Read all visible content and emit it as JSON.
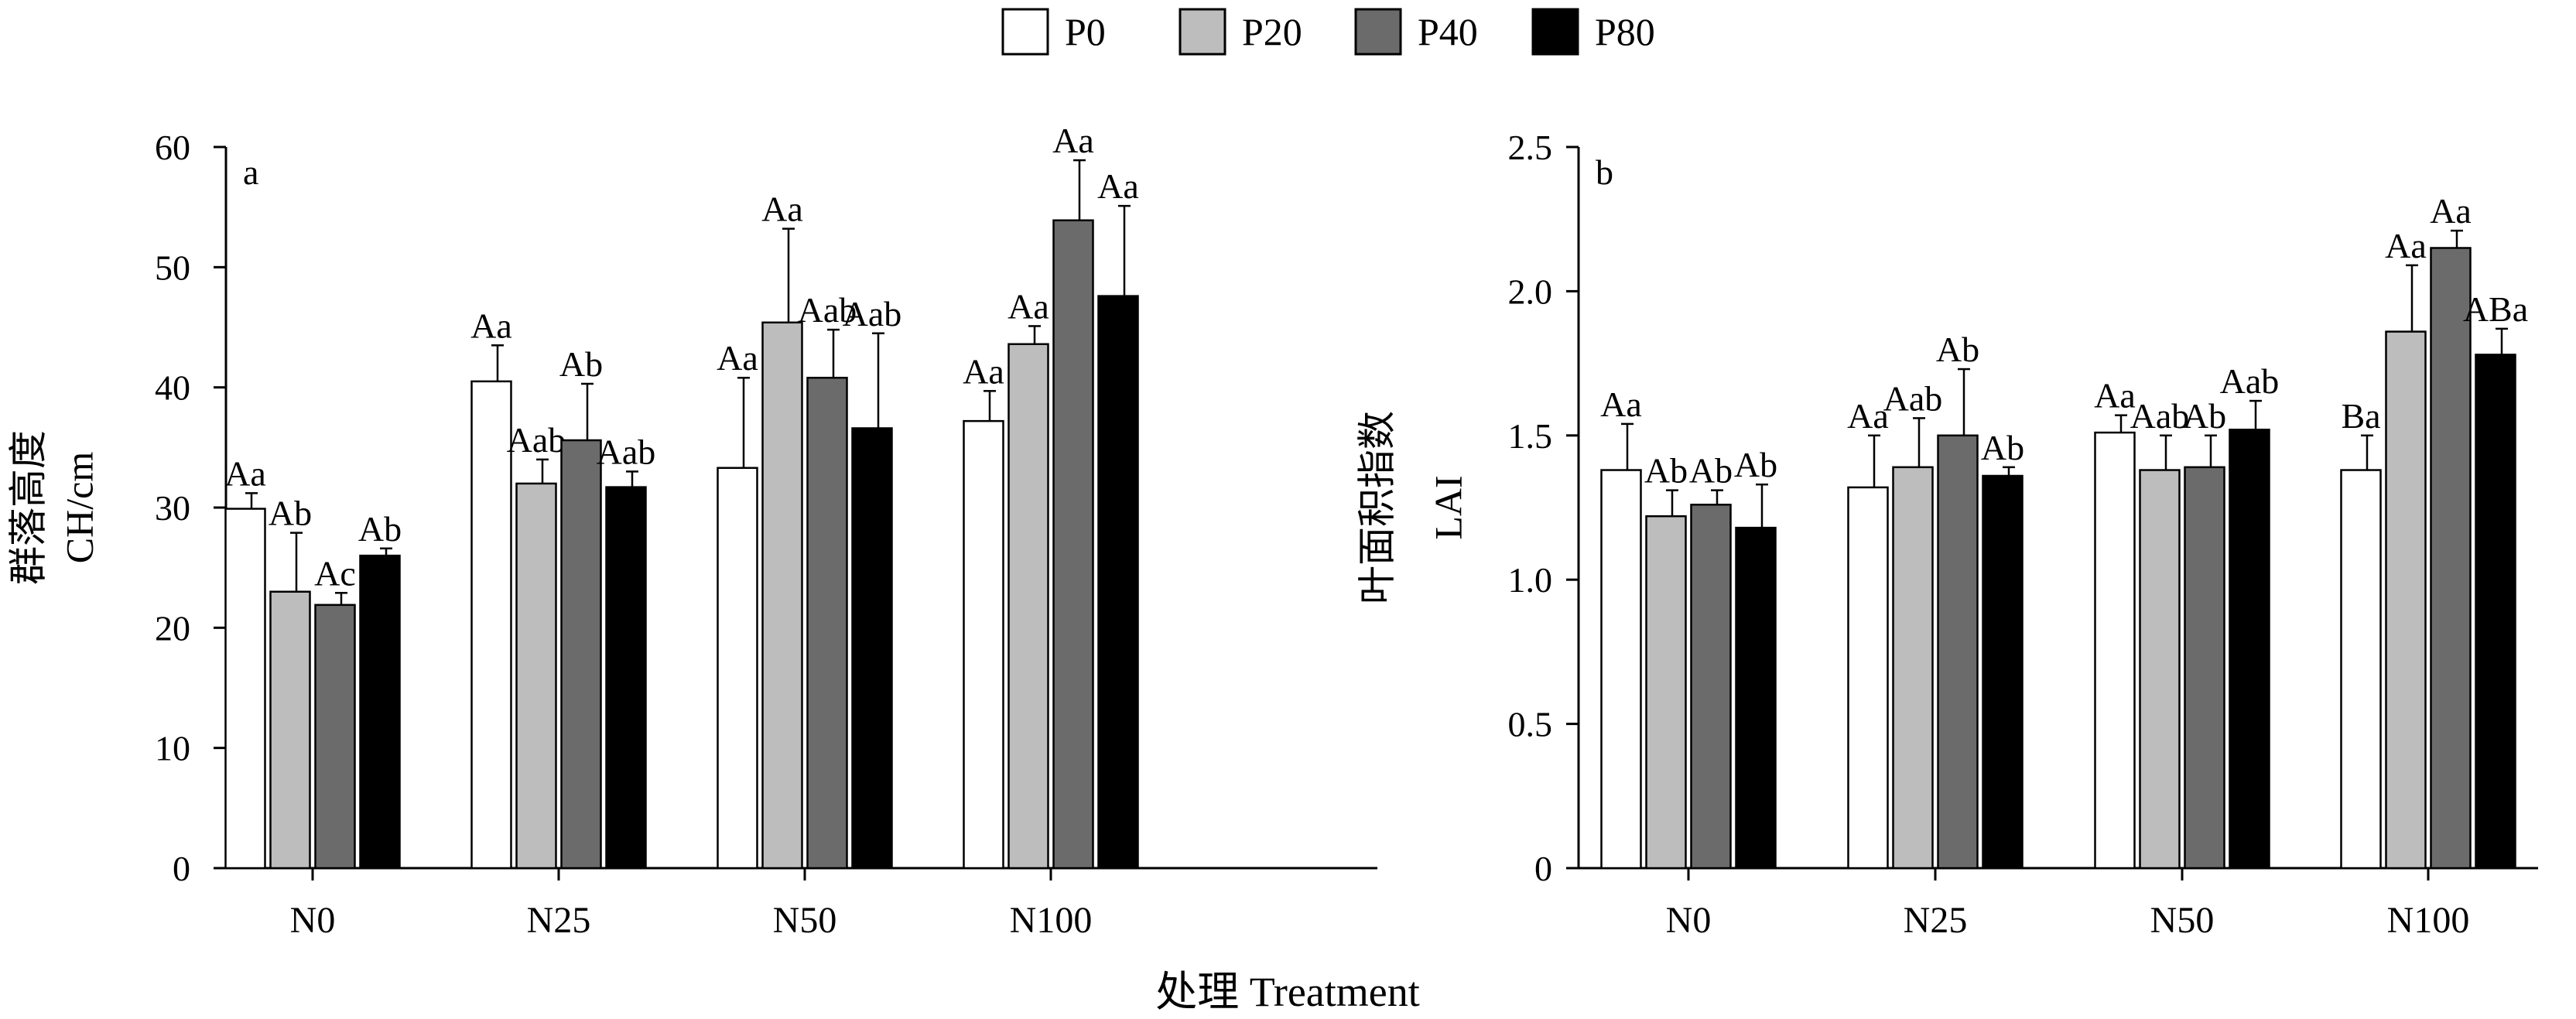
{
  "legend": [
    {
      "name": "P0",
      "color": "#ffffff"
    },
    {
      "name": "P20",
      "color": "#bdbdbd"
    },
    {
      "name": "P40",
      "color": "#6b6b6b"
    },
    {
      "name": "P80",
      "color": "#000000"
    }
  ],
  "xlabel": "处理 Treatment",
  "chart_data": [
    {
      "type": "bar",
      "panel_label": "a",
      "ylabel_cn": "群落高度",
      "ylabel_en": "CH/cm",
      "categories": [
        "N0",
        "N25",
        "N50",
        "N100"
      ],
      "yticks": [
        "0",
        "10",
        "20",
        "30",
        "40",
        "50",
        "60"
      ],
      "ylim": [
        0,
        60
      ],
      "series": [
        {
          "name": "P0",
          "values": [
            29.9,
            40.5,
            33.3,
            37.2
          ],
          "errors": [
            1.3,
            3.0,
            7.5,
            2.5
          ],
          "labels": [
            "Aa",
            "Aa",
            "Aa",
            "Aa"
          ]
        },
        {
          "name": "P20",
          "values": [
            23.0,
            32.0,
            45.4,
            43.6
          ],
          "errors": [
            4.9,
            2.0,
            7.8,
            1.5
          ],
          "labels": [
            "Ab",
            "Aab",
            "Aa",
            "Aa"
          ]
        },
        {
          "name": "P40",
          "values": [
            21.9,
            35.6,
            40.8,
            53.9
          ],
          "errors": [
            1.0,
            4.7,
            4.0,
            5.0
          ],
          "labels": [
            "Ac",
            "Ab",
            "Aab",
            "Aa"
          ]
        },
        {
          "name": "P80",
          "values": [
            26.0,
            31.7,
            36.6,
            47.6
          ],
          "errors": [
            0.6,
            1.3,
            7.9,
            7.5
          ],
          "labels": [
            "Ab",
            "Aab",
            "Aab",
            "Aa"
          ]
        }
      ]
    },
    {
      "type": "bar",
      "panel_label": "b",
      "ylabel_cn": "叶面积指数",
      "ylabel_en": "LAI",
      "categories": [
        "N0",
        "N25",
        "N50",
        "N100"
      ],
      "yticks": [
        "0",
        "0.5",
        "1.0",
        "1.5",
        "2.0",
        "2.5"
      ],
      "ylim": [
        0,
        2.5
      ],
      "series": [
        {
          "name": "P0",
          "values": [
            1.38,
            1.32,
            1.51,
            1.38
          ],
          "errors": [
            0.16,
            0.18,
            0.06,
            0.12
          ],
          "labels": [
            "Aa",
            "Aa",
            "Aa",
            "Ba"
          ]
        },
        {
          "name": "P20",
          "values": [
            1.22,
            1.39,
            1.38,
            1.86
          ],
          "errors": [
            0.09,
            0.17,
            0.12,
            0.23
          ],
          "labels": [
            "Ab",
            "Aab",
            "Aab",
            "Aa"
          ]
        },
        {
          "name": "P40",
          "values": [
            1.26,
            1.5,
            1.39,
            2.15
          ],
          "errors": [
            0.05,
            0.23,
            0.11,
            0.06
          ],
          "labels": [
            "Ab",
            "Ab",
            "Ab",
            "Aa"
          ]
        },
        {
          "name": "P80",
          "values": [
            1.18,
            1.36,
            1.52,
            1.78
          ],
          "errors": [
            0.15,
            0.03,
            0.1,
            0.09
          ],
          "labels": [
            "Ab",
            "Ab",
            "Aab",
            "ABa"
          ]
        }
      ]
    }
  ]
}
